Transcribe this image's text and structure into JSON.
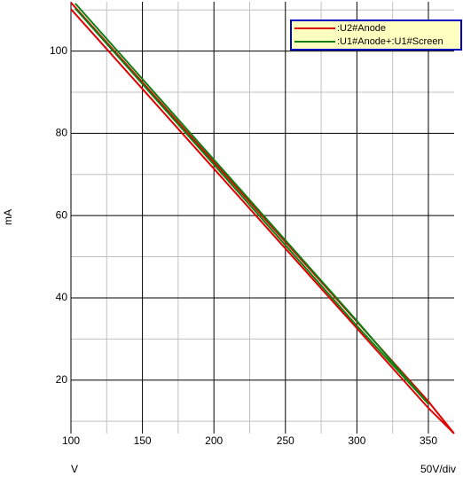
{
  "chart_data": {
    "type": "line",
    "xlabel": "V",
    "ylabel": "mA",
    "scale_note": "50V/div",
    "xlim": [
      100,
      368
    ],
    "ylim": [
      7,
      112
    ],
    "xticks": [
      100,
      150,
      200,
      250,
      300,
      350
    ],
    "yticks": [
      20,
      40,
      60,
      80,
      100
    ],
    "xminorticks": [
      125,
      175,
      225,
      275,
      325
    ],
    "yminorticks": [
      10,
      30,
      50,
      70,
      90,
      110
    ],
    "grid": true,
    "legend": "top-right",
    "series": [
      {
        "name": ":U2#Anode",
        "color": "#e00000",
        "x": [
          100,
          150,
          200,
          250,
          300,
          350,
          368,
          350,
          300,
          250,
          200,
          150,
          100
        ],
        "values": [
          110.2,
          90.8,
          71.4,
          52.0,
          32.6,
          13.2,
          7.0,
          14.8,
          34.2,
          53.6,
          73.0,
          92.4,
          111.8
        ]
      },
      {
        "name": ":U1#Anode+:U1#Screen",
        "color": "#108010",
        "x": [
          103,
          150,
          200,
          250,
          300,
          350,
          300,
          250,
          200,
          150,
          103
        ],
        "values": [
          110.4,
          92.0,
          72.4,
          52.8,
          33.2,
          14.2,
          34.4,
          54.0,
          73.6,
          93.2,
          111.6
        ]
      }
    ]
  }
}
